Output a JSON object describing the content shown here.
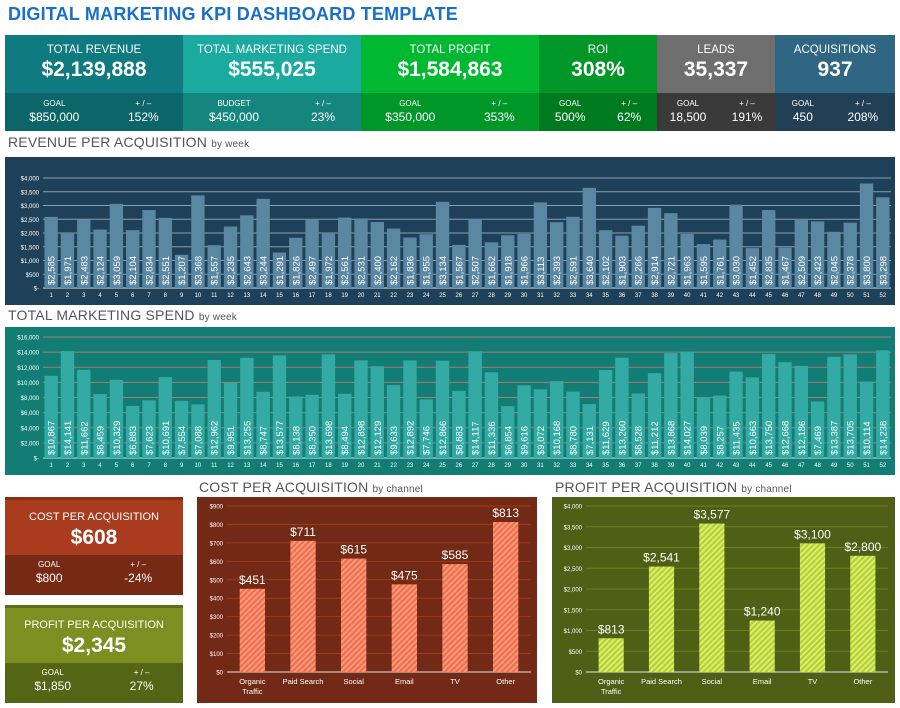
{
  "title": "DIGITAL MARKETING KPI DASHBOARD TEMPLATE",
  "kpis": [
    {
      "label": "TOTAL REVENUE",
      "value": "$2,139,888",
      "goal_label": "GOAL",
      "goal": "$850,000",
      "diff_label": "+ / –",
      "diff": "152%",
      "color": "#0f7b80",
      "color_dark": "#0b6569"
    },
    {
      "label": "TOTAL MARKETING SPEND",
      "value": "$555,025",
      "goal_label": "BUDGET",
      "goal": "$450,000",
      "diff_label": "+ / –",
      "diff": "23%",
      "color": "#1aaa9f",
      "color_dark": "#14867e"
    },
    {
      "label": "TOTAL PROFIT",
      "value": "$1,584,863",
      "goal_label": "GOAL",
      "goal": "$350,000",
      "diff_label": "+ / –",
      "diff": "353%",
      "color": "#00b832",
      "color_dark": "#009728"
    },
    {
      "label": "ROI",
      "value": "308%",
      "goal_label": "GOAL",
      "goal": "500%",
      "diff_label": "+ / –",
      "diff": "62%",
      "color": "#009728",
      "color_dark": "#007a1f"
    },
    {
      "label": "LEADS",
      "value": "35,337",
      "goal_label": "GOAL",
      "goal": "18,500",
      "diff_label": "+ / –",
      "diff": "191%",
      "color": "#6e6e6e",
      "color_dark": "#3a3a3a"
    },
    {
      "label": "ACQUISITIONS",
      "value": "937",
      "goal_label": "GOAL",
      "goal": "450",
      "diff_label": "+ / –",
      "diff": "208%",
      "color": "#2e6684",
      "color_dark": "#213f55"
    }
  ],
  "sections": {
    "revenue": "REVENUE PER ACQUISITION",
    "revenue_sub": "by week",
    "spend": "TOTAL MARKETING SPEND",
    "spend_sub": "by week",
    "cpa": "COST PER ACQUISITION",
    "cpa_sub": "by channel",
    "ppa": "PROFIT PER ACQUISITION",
    "ppa_sub": "by channel"
  },
  "cards": {
    "cpa": {
      "label": "COST PER ACQUISITION",
      "value": "$608",
      "goal_label": "GOAL",
      "goal": "$800",
      "diff_label": "+ / –",
      "diff": "-24%"
    },
    "ppa": {
      "label": "PROFIT PER ACQUISITION",
      "value": "$2,345",
      "goal_label": "GOAL",
      "goal": "$1,850",
      "diff_label": "+ / –",
      "diff": "27%"
    }
  },
  "chart_data": [
    {
      "id": "revenue",
      "type": "bar",
      "title": "REVENUE PER ACQUISITION by week",
      "ylim": [
        0,
        4000
      ],
      "yticks": [
        "$-",
        "$500",
        "$1,000",
        "$1,500",
        "$2,000",
        "$2,500",
        "$3,000",
        "$3,500",
        "$4,000"
      ],
      "grid": true,
      "bar_color": "#5a87a1",
      "bg": "#1e4159",
      "categories": [
        "1",
        "2",
        "3",
        "4",
        "5",
        "6",
        "7",
        "8",
        "9",
        "10",
        "11",
        "12",
        "13",
        "14",
        "15",
        "16",
        "17",
        "18",
        "19",
        "20",
        "21",
        "22",
        "23",
        "24",
        "25",
        "26",
        "27",
        "28",
        "29",
        "30",
        "31",
        "32",
        "33",
        "34",
        "35",
        "36",
        "37",
        "38",
        "39",
        "40",
        "41",
        "42",
        "43",
        "44",
        "45",
        "46",
        "47",
        "48",
        "49",
        "50",
        "51",
        "52"
      ],
      "values": [
        2585,
        1971,
        2483,
        2124,
        3059,
        2104,
        2834,
        2551,
        1207,
        3368,
        1557,
        2235,
        2643,
        3244,
        1291,
        1826,
        2497,
        1972,
        2561,
        2531,
        2400,
        2162,
        1836,
        1955,
        3134,
        1567,
        2507,
        1662,
        1918,
        1966,
        3113,
        2393,
        2591,
        3640,
        2102,
        1903,
        2266,
        2914,
        2721,
        1963,
        1595,
        1761,
        3030,
        1452,
        2835,
        1467,
        2509,
        2423,
        2045,
        2378,
        3800,
        3298
      ]
    },
    {
      "id": "spend",
      "type": "bar",
      "title": "TOTAL MARKETING SPEND by week",
      "ylim": [
        0,
        16000
      ],
      "yticks": [
        "$-",
        "$2,000",
        "$4,000",
        "$6,000",
        "$8,000",
        "$10,000",
        "$12,000",
        "$14,000",
        "$16,000"
      ],
      "grid": true,
      "bar_color": "#33aba4",
      "bg": "#127d74",
      "categories": [
        "1",
        "2",
        "3",
        "4",
        "5",
        "6",
        "7",
        "8",
        "9",
        "10",
        "11",
        "12",
        "13",
        "14",
        "15",
        "16",
        "17",
        "18",
        "19",
        "20",
        "21",
        "22",
        "23",
        "24",
        "25",
        "26",
        "27",
        "28",
        "29",
        "30",
        "31",
        "32",
        "33",
        "34",
        "35",
        "36",
        "37",
        "38",
        "39",
        "40",
        "41",
        "42",
        "43",
        "44",
        "45",
        "46",
        "47",
        "48",
        "49",
        "50",
        "51",
        "52"
      ],
      "values": [
        10867,
        14141,
        11662,
        8459,
        10329,
        6883,
        7623,
        10691,
        7554,
        7088,
        12962,
        9951,
        13255,
        8747,
        13577,
        8138,
        8350,
        13698,
        8494,
        12898,
        12129,
        9633,
        12892,
        7746,
        12866,
        8883,
        14117,
        11336,
        6854,
        9616,
        9072,
        10168,
        8780,
        7131,
        11629,
        13260,
        8528,
        11212,
        13868,
        14027,
        8039,
        8257,
        11435,
        10663,
        13750,
        12668,
        12186,
        7469,
        13387,
        13705,
        10114,
        14238
      ]
    },
    {
      "id": "cpa",
      "type": "bar",
      "title": "COST PER ACQUISITION by channel",
      "ylim": [
        0,
        900
      ],
      "yticks": [
        "$0",
        "$100",
        "$200",
        "$300",
        "$400",
        "$500",
        "$600",
        "$700",
        "$800",
        "$900"
      ],
      "grid": true,
      "bar_color": "#f2714a",
      "bg": "#722915",
      "categories": [
        "Organic Traffic",
        "Paid Search",
        "Social",
        "Email",
        "TV",
        "Other"
      ],
      "values": [
        451,
        711,
        615,
        475,
        585,
        813
      ],
      "labels": [
        "$451",
        "$711",
        "$615",
        "$475",
        "$585",
        "$813"
      ]
    },
    {
      "id": "ppa",
      "type": "bar",
      "title": "PROFIT PER ACQUISITION by channel",
      "ylim": [
        0,
        4000
      ],
      "yticks": [
        "$0",
        "$500",
        "$1,000",
        "$1,500",
        "$2,000",
        "$2,500",
        "$3,000",
        "$3,500",
        "$4,000"
      ],
      "grid": true,
      "bar_color": "#b5d335",
      "bg": "#4f5f16",
      "categories": [
        "Organic Traffic",
        "Paid Search",
        "Social",
        "Email",
        "TV",
        "Other"
      ],
      "values": [
        813,
        2541,
        3577,
        1240,
        3100,
        2800
      ],
      "labels": [
        "$813",
        "$2,541",
        "$3,577",
        "$1,240",
        "$3,100",
        "$2,800"
      ]
    }
  ]
}
